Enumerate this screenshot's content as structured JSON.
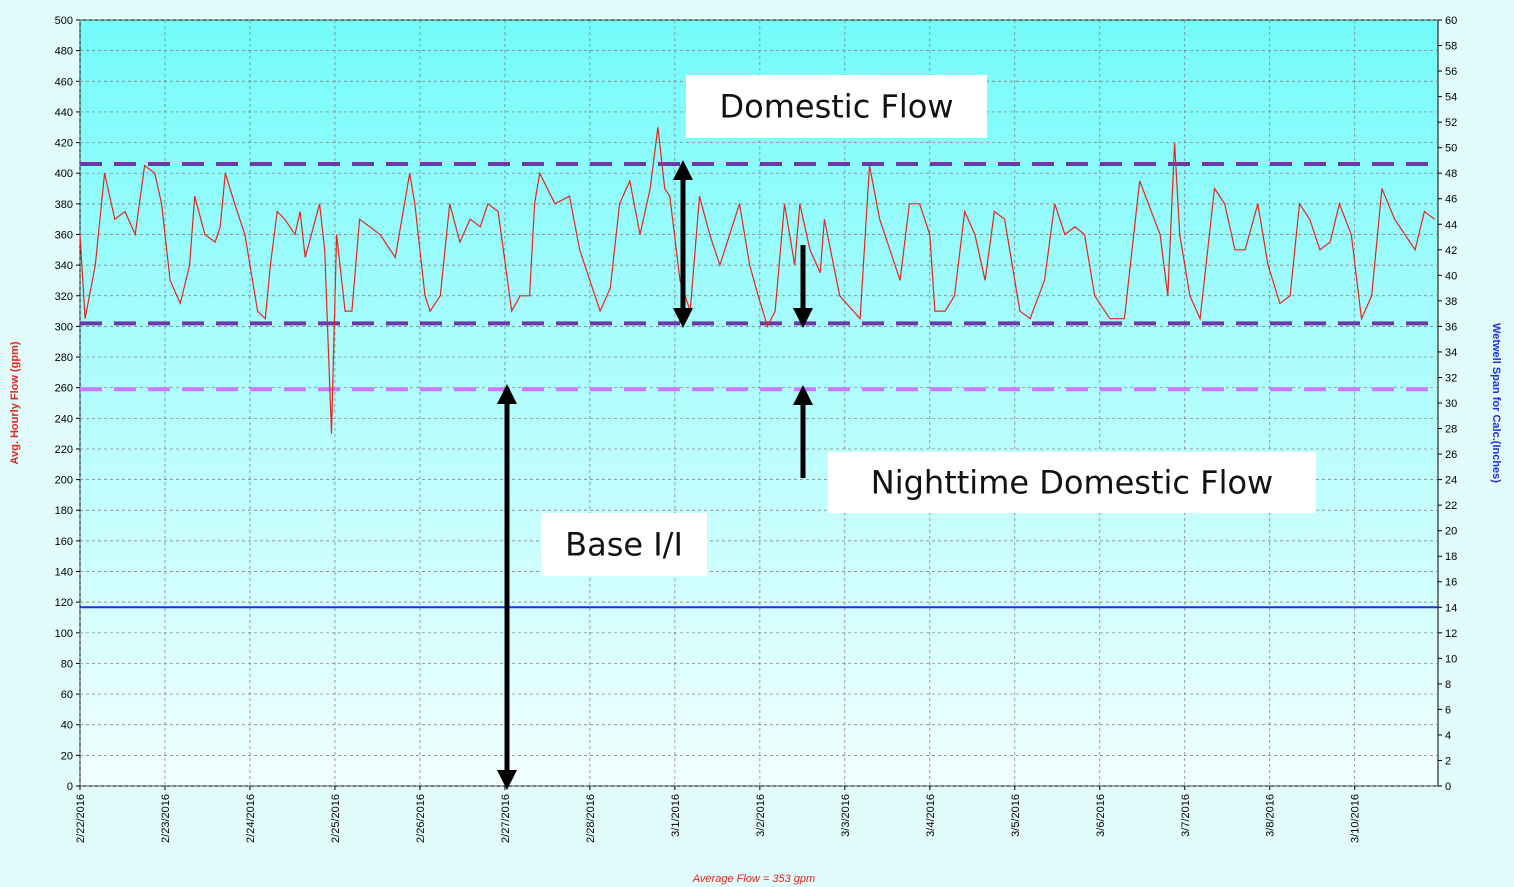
{
  "chart_data": {
    "type": "line",
    "y_label": "Avg. Hourly Flow (gpm)",
    "y2_label": "Wetwell Span for Calc.(Inches)",
    "footer": "Average Flow = 353 gpm",
    "annotations": [
      "Domestic Flow",
      "Nighttime Domestic Flow",
      "Base I/I"
    ],
    "grid": true,
    "xlim": [
      0,
      15.98
    ],
    "xticks": [
      {
        "value": 0,
        "label": "2/22/2016"
      },
      {
        "value": 1,
        "label": "2/23/2016"
      },
      {
        "value": 2,
        "label": "2/24/2016"
      },
      {
        "value": 3,
        "label": "2/25/2016"
      },
      {
        "value": 4,
        "label": "2/26/2016"
      },
      {
        "value": 5,
        "label": "2/27/2016"
      },
      {
        "value": 6,
        "label": "2/28/2016"
      },
      {
        "value": 7,
        "label": "3/1/2016"
      },
      {
        "value": 8,
        "label": "3/2/2016"
      },
      {
        "value": 9,
        "label": "3/3/2016"
      },
      {
        "value": 10,
        "label": "3/4/2016"
      },
      {
        "value": 11,
        "label": "3/5/2016"
      },
      {
        "value": 12,
        "label": "3/6/2016"
      },
      {
        "value": 13,
        "label": "3/7/2016"
      },
      {
        "value": 14,
        "label": "3/8/2016"
      },
      {
        "value": 15,
        "label": "3/10/2016"
      }
    ],
    "ylim": [
      0,
      500
    ],
    "yticks": [
      0,
      20,
      40,
      60,
      80,
      100,
      120,
      140,
      160,
      180,
      200,
      220,
      240,
      260,
      280,
      300,
      320,
      340,
      360,
      380,
      400,
      420,
      440,
      460,
      480,
      500
    ],
    "y2lim": [
      0,
      60
    ],
    "y2ticks": [
      0,
      2,
      4,
      6,
      8,
      10,
      12,
      14,
      16,
      18,
      20,
      22,
      24,
      26,
      28,
      30,
      32,
      34,
      36,
      38,
      40,
      42,
      44,
      46,
      48,
      50,
      52,
      54,
      56,
      58,
      60
    ],
    "series": [
      {
        "color": "#e8241c",
        "x": [
          0,
          0.06,
          0.18,
          0.29,
          0.41,
          0.53,
          0.65,
          0.76,
          0.88,
          0.96,
          1.06,
          1.18,
          1.29,
          1.35,
          1.47,
          1.59,
          1.65,
          1.71,
          1.82,
          1.94,
          2.09,
          2.18,
          2.24,
          2.32,
          2.41,
          2.53,
          2.59,
          2.65,
          2.82,
          2.88,
          2.96,
          3.02,
          3.12,
          3.2,
          3.29,
          3.41,
          3.53,
          3.71,
          3.88,
          3.94,
          4.06,
          4.12,
          4.24,
          4.35,
          4.47,
          4.59,
          4.71,
          4.8,
          4.92,
          5.08,
          5.18,
          5.29,
          5.35,
          5.41,
          5.59,
          5.76,
          5.88,
          6.06,
          6.12,
          6.24,
          6.35,
          6.47,
          6.59,
          6.71,
          6.8,
          6.88,
          6.94,
          7.06,
          7.18,
          7.29,
          7.41,
          7.53,
          7.76,
          7.88,
          7.98,
          8.09,
          8.18,
          8.29,
          8.41,
          8.47,
          8.59,
          8.71,
          8.76,
          8.94,
          9.18,
          9.29,
          9.41,
          9.53,
          9.65,
          9.76,
          9.88,
          10,
          10.06,
          10.18,
          10.29,
          10.41,
          10.53,
          10.65,
          10.76,
          10.88,
          11.06,
          11.18,
          11.35,
          11.47,
          11.59,
          11.71,
          11.82,
          11.94,
          12.12,
          12.29,
          12.47,
          12.71,
          12.8,
          12.88,
          12.94,
          13.06,
          13.18,
          13.35,
          13.47,
          13.59,
          13.71,
          13.86,
          13.98,
          14.12,
          14.24,
          14.35,
          14.47,
          14.59,
          14.71,
          14.82,
          14.96,
          15.08,
          15.2,
          15.32,
          15.47,
          15.59,
          15.71,
          15.82,
          15.94
        ],
        "values": [
          360,
          305,
          340,
          400,
          370,
          375,
          360,
          405,
          400,
          380,
          330,
          315,
          340,
          385,
          360,
          355,
          365,
          400,
          380,
          360,
          310,
          305,
          340,
          375,
          370,
          360,
          375,
          345,
          380,
          350,
          230,
          360,
          310,
          310,
          370,
          365,
          360,
          345,
          400,
          380,
          320,
          310,
          320,
          380,
          355,
          370,
          365,
          380,
          375,
          310,
          320,
          320,
          380,
          400,
          380,
          385,
          350,
          320,
          310,
          325,
          380,
          395,
          360,
          390,
          430,
          390,
          385,
          330,
          310,
          385,
          360,
          340,
          380,
          340,
          320,
          300,
          310,
          380,
          340,
          380,
          350,
          335,
          370,
          320,
          305,
          405,
          370,
          350,
          330,
          380,
          380,
          360,
          310,
          310,
          320,
          375,
          360,
          330,
          375,
          370,
          310,
          305,
          330,
          380,
          360,
          365,
          360,
          320,
          305,
          305,
          395,
          360,
          320,
          420,
          360,
          320,
          305,
          390,
          380,
          350,
          350,
          380,
          340,
          315,
          320,
          380,
          370,
          350,
          355,
          380,
          360,
          305,
          320,
          390,
          370,
          360,
          350,
          375,
          370
        ]
      }
    ],
    "reference_lines": [
      {
        "value": 406,
        "color": "#6b3aa8"
      },
      {
        "value": 302,
        "color": "#6b3aa8"
      },
      {
        "value": 259,
        "color": "#cc77ff"
      }
    ],
    "y2_line": {
      "value": 14,
      "color": "#1f2ee0",
      "axis": "y2"
    }
  }
}
